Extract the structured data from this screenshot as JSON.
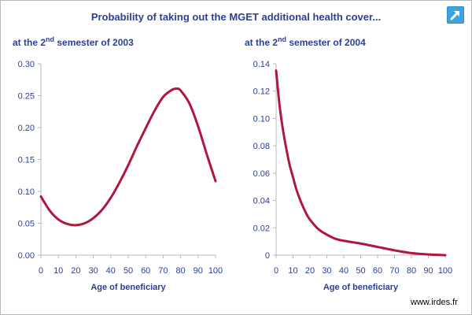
{
  "title": "Probability of taking out the MGET additional health cover...",
  "footer": "www.irdes.fr",
  "colors": {
    "title": "#2d3f92",
    "line": "#b0173f",
    "axis": "#b9b9b9"
  },
  "icons": {
    "corner": "expand-arrow-icon"
  },
  "chart_data": [
    {
      "type": "line",
      "title_pre": "at the 2",
      "title_sup": "nd",
      "title_post": " semester of 2003",
      "xlabel": "Age of beneficiary",
      "ylabel": "",
      "xlim": [
        0,
        100
      ],
      "ylim": [
        0,
        0.3
      ],
      "xticks": [
        0,
        10,
        20,
        30,
        40,
        50,
        60,
        70,
        80,
        90,
        100
      ],
      "yticks": [
        "0.00",
        "0.05",
        "0.10",
        "0.15",
        "0.20",
        "0.25",
        "0.30"
      ],
      "grid": false,
      "x": [
        0,
        5,
        10,
        15,
        20,
        25,
        30,
        35,
        40,
        45,
        50,
        55,
        60,
        65,
        70,
        75,
        78,
        80,
        85,
        90,
        95,
        100
      ],
      "y": [
        0.092,
        0.07,
        0.056,
        0.049,
        0.047,
        0.05,
        0.058,
        0.071,
        0.09,
        0.114,
        0.141,
        0.171,
        0.199,
        0.226,
        0.248,
        0.259,
        0.261,
        0.258,
        0.238,
        0.202,
        0.158,
        0.116
      ]
    },
    {
      "type": "line",
      "title_pre": "at the 2",
      "title_sup": "nd",
      "title_post": " semester of 2004",
      "xlabel": "Age of beneficiary",
      "ylabel": "",
      "xlim": [
        0,
        100
      ],
      "ylim": [
        0,
        0.14
      ],
      "xticks": [
        0,
        10,
        20,
        30,
        40,
        50,
        60,
        70,
        80,
        90,
        100
      ],
      "yticks": [
        "0",
        "0.02",
        "0.04",
        "0.06",
        "0.08",
        "0.10",
        "0.12",
        "0.14"
      ],
      "grid": false,
      "x": [
        0,
        2,
        4,
        6,
        8,
        10,
        12,
        15,
        18,
        20,
        25,
        30,
        35,
        40,
        50,
        60,
        70,
        80,
        90,
        100
      ],
      "y": [
        0.135,
        0.11,
        0.092,
        0.078,
        0.066,
        0.057,
        0.048,
        0.038,
        0.03,
        0.026,
        0.019,
        0.015,
        0.012,
        0.0105,
        0.0085,
        0.006,
        0.0035,
        0.0015,
        0.0005,
        0.0
      ]
    }
  ]
}
